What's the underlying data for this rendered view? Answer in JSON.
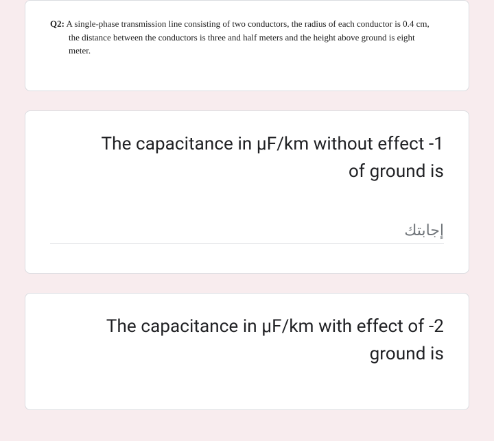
{
  "q2_problem": {
    "label": "Q2:",
    "line1": " A single-phase transmission line consisting of two conductors, the radius of each conductor is 0.4 cm,",
    "line2": "the distance between the conductors is three and half meters and the height above ground is eight",
    "line3": "meter."
  },
  "question1": {
    "text_line1": "The capacitance in μF/km without effect -1",
    "text_line2": "of ground is",
    "answer_placeholder": "إجابتك"
  },
  "question2": {
    "text_line1": "The capacitance in μF/km with effect of -2",
    "text_line2": "ground is"
  },
  "colors": {
    "background": "#f8ecee",
    "card_bg": "#ffffff",
    "border": "#dadce0",
    "text": "#202124",
    "placeholder": "#70757a"
  }
}
